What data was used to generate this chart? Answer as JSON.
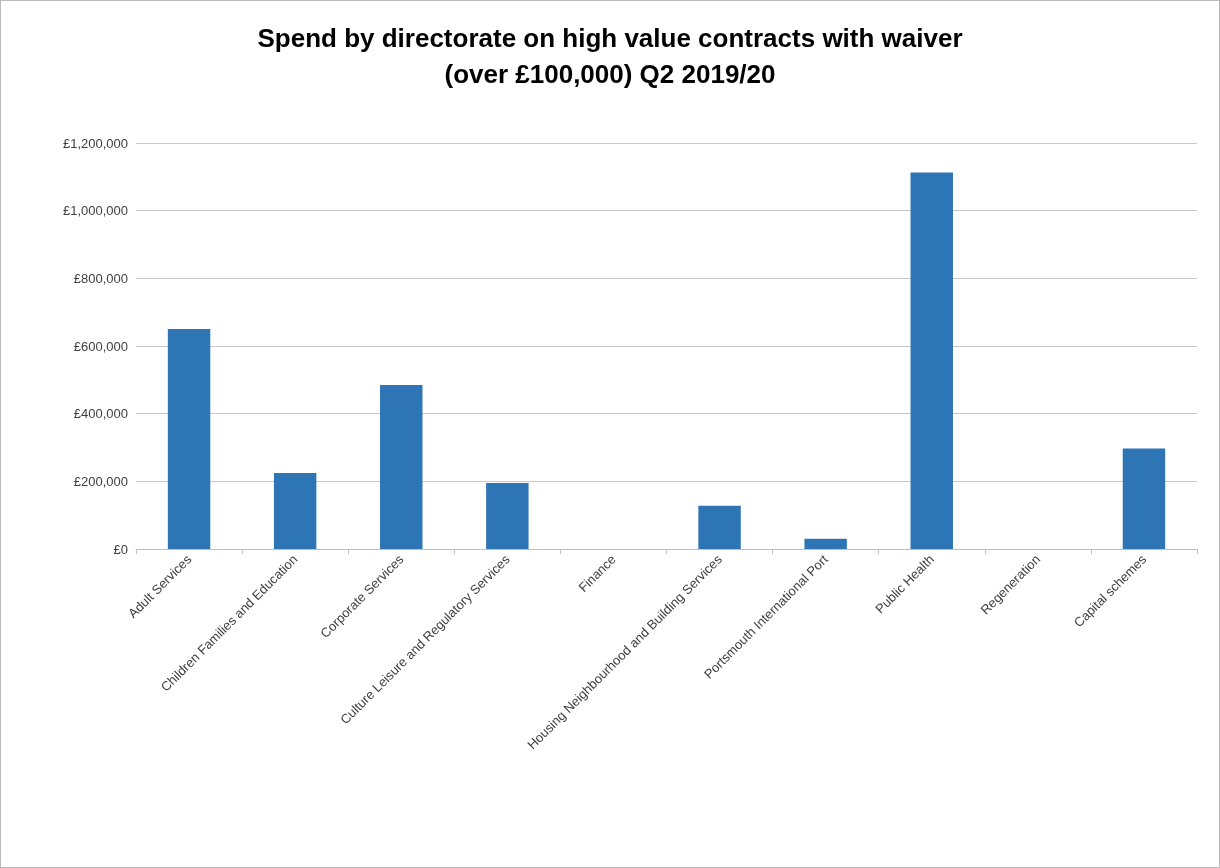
{
  "chart_data": {
    "type": "bar",
    "title": "Spend by directorate on high value contracts with waiver\n(over £100,000) Q2 2019/20",
    "categories": [
      "Adult Services",
      "Children Families and Education",
      "Corporate Services",
      "Culture Leisure and Regulatory Services",
      "Finance",
      "Housing Neighbourhood and Building Services",
      "Portsmouth International Port",
      "Public Health",
      "Regeneration",
      "Capital schemes"
    ],
    "values": [
      650000,
      225000,
      485000,
      195000,
      0,
      128000,
      30000,
      1113000,
      0,
      297000
    ],
    "color": "#2e75b6",
    "ylim": [
      0,
      1200000
    ],
    "yticks": [
      {
        "value": 0,
        "label": "£0"
      },
      {
        "value": 200000,
        "label": "£200,000"
      },
      {
        "value": 400000,
        "label": "£400,000"
      },
      {
        "value": 600000,
        "label": "£600,000"
      },
      {
        "value": 800000,
        "label": "£800,000"
      },
      {
        "value": 1000000,
        "label": "£1,000,000"
      },
      {
        "value": 1200000,
        "label": "£1,200,000"
      }
    ],
    "grid": "y"
  }
}
